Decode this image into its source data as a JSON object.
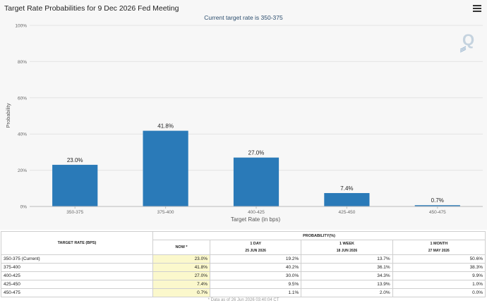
{
  "chart_data": {
    "type": "bar",
    "title": "Target Rate Probabilities for 9 Dec 2026 Fed Meeting",
    "subtitle": "Current target rate is 350-375",
    "xlabel": "Target Rate (in bps)",
    "ylabel": "Probability",
    "categories": [
      "350-375",
      "375-400",
      "400-425",
      "425-450",
      "450-475"
    ],
    "values": [
      23.0,
      41.8,
      27.0,
      7.4,
      0.7
    ],
    "data_labels": [
      "23.0%",
      "41.8%",
      "27.0%",
      "7.4%",
      "0.7%"
    ],
    "ylim": [
      0,
      100
    ],
    "yticks": [
      0,
      20,
      40,
      60,
      80,
      100
    ],
    "ytick_labels": [
      "0%",
      "20%",
      "40%",
      "60%",
      "80%",
      "100%"
    ],
    "grid": true,
    "colors": {
      "bar": "#2a7ab8",
      "grid": "#e3e3e3",
      "subtitle": "#2c4e6e"
    }
  },
  "table": {
    "rate_header": "TARGET RATE (BPS)",
    "prob_header": "PROBABILITY(%)",
    "columns": [
      {
        "label": "NOW *",
        "date": ""
      },
      {
        "label": "1 DAY",
        "date": "25 JUN 2026"
      },
      {
        "label": "1 WEEK",
        "date": "18 JUN 2026"
      },
      {
        "label": "1 MONTH",
        "date": "27 MAY 2026"
      }
    ],
    "rows": [
      {
        "rate": "350-375 (Current)",
        "values": [
          "23.0%",
          "19.2%",
          "13.7%",
          "50.6%"
        ]
      },
      {
        "rate": "375-400",
        "values": [
          "41.8%",
          "40.2%",
          "36.1%",
          "38.3%"
        ]
      },
      {
        "rate": "400-425",
        "values": [
          "27.0%",
          "30.0%",
          "34.3%",
          "9.9%"
        ]
      },
      {
        "rate": "425-450",
        "values": [
          "7.4%",
          "9.5%",
          "13.9%",
          "1.0%"
        ]
      },
      {
        "rate": "450-475",
        "values": [
          "0.7%",
          "1.1%",
          "2.0%",
          "0.0%"
        ]
      }
    ],
    "footer": "* Data as of 26 Jun 2026 03:40:04 CT"
  },
  "icons": {
    "menu": "hamburger-menu-icon",
    "watermark": "quikstrike-q-logo"
  }
}
